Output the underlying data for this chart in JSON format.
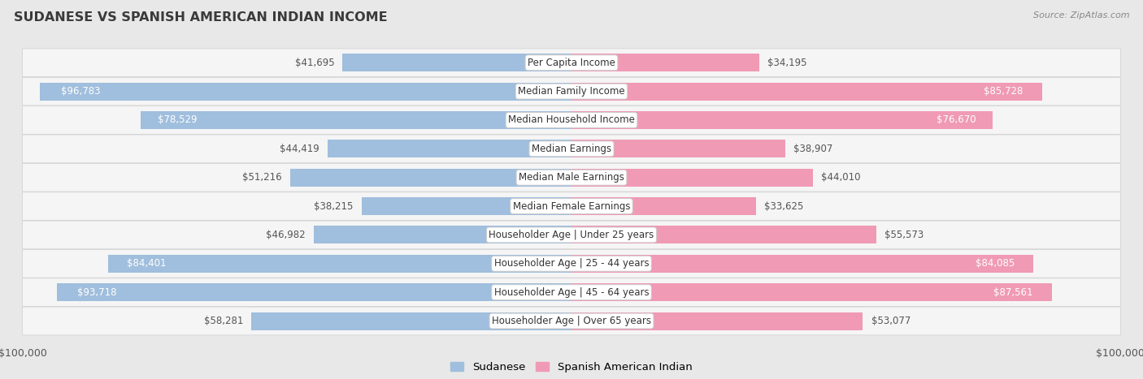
{
  "title": "SUDANESE VS SPANISH AMERICAN INDIAN INCOME",
  "source": "Source: ZipAtlas.com",
  "max_value": 100000,
  "categories": [
    "Per Capita Income",
    "Median Family Income",
    "Median Household Income",
    "Median Earnings",
    "Median Male Earnings",
    "Median Female Earnings",
    "Householder Age | Under 25 years",
    "Householder Age | 25 - 44 years",
    "Householder Age | 45 - 64 years",
    "Householder Age | Over 65 years"
  ],
  "sudanese": [
    41695,
    96783,
    78529,
    44419,
    51216,
    38215,
    46982,
    84401,
    93718,
    58281
  ],
  "spanish": [
    34195,
    85728,
    76670,
    38907,
    44010,
    33625,
    55573,
    84085,
    87561,
    53077
  ],
  "sudanese_labels": [
    "$41,695",
    "$96,783",
    "$78,529",
    "$44,419",
    "$51,216",
    "$38,215",
    "$46,982",
    "$84,401",
    "$93,718",
    "$58,281"
  ],
  "spanish_labels": [
    "$34,195",
    "$85,728",
    "$76,670",
    "$38,907",
    "$44,010",
    "$33,625",
    "$55,573",
    "$84,085",
    "$87,561",
    "$53,077"
  ],
  "color_sudanese": "#a0bedd",
  "color_spanish": "#f09ab5",
  "bg_color": "#e8e8e8",
  "row_bg": "#f5f5f5",
  "row_border": "#d0d0d0",
  "bar_height": 0.62,
  "inside_label_threshold": 65000,
  "label_fontsize": 8.5,
  "cat_fontsize": 8.5
}
